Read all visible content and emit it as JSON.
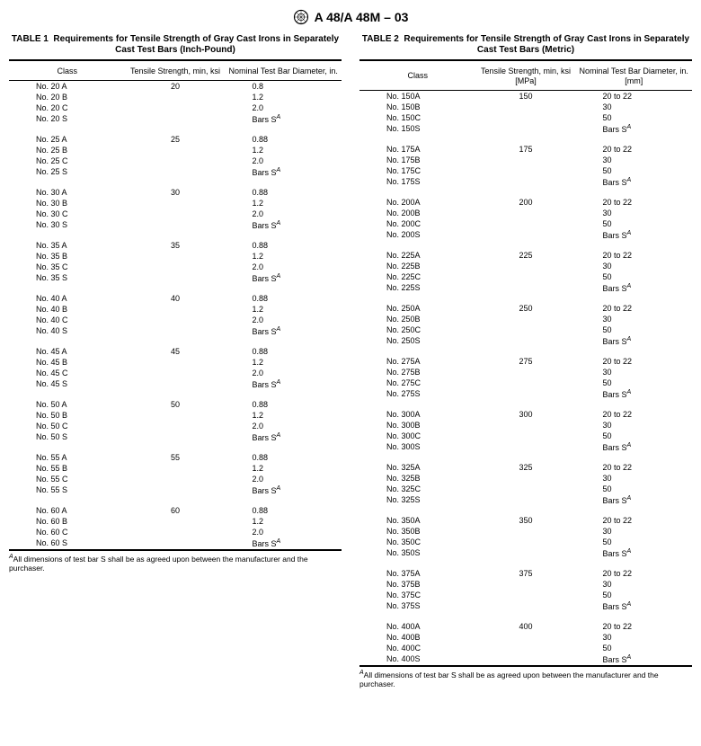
{
  "header": {
    "standard": "A 48/A 48M – 03"
  },
  "table1": {
    "caption_prefix": "TABLE 1",
    "caption": "Requirements for Tensile Strength of Gray Cast Irons in Separately Cast Test Bars (Inch-Pound)",
    "headers": {
      "class": "Class",
      "tensile": "Tensile Strength, min, ksi",
      "diameter": "Nominal Test Bar Diameter, in."
    },
    "groups": [
      {
        "ts": "20",
        "rows": [
          {
            "cls": "No. 20 A",
            "dia": "0.8"
          },
          {
            "cls": "No. 20 B",
            "dia": "1.2"
          },
          {
            "cls": "No. 20 C",
            "dia": "2.0"
          },
          {
            "cls": "No. 20 S",
            "dia_html": "Bars S<sup>A</sup>"
          }
        ]
      },
      {
        "ts": "25",
        "rows": [
          {
            "cls": "No. 25 A",
            "dia": "0.88"
          },
          {
            "cls": "No. 25 B",
            "dia": "1.2"
          },
          {
            "cls": "No. 25 C",
            "dia": "2.0"
          },
          {
            "cls": "No. 25 S",
            "dia_html": "Bars S<sup>A</sup>"
          }
        ]
      },
      {
        "ts": "30",
        "rows": [
          {
            "cls": "No. 30 A",
            "dia": "0.88"
          },
          {
            "cls": "No. 30 B",
            "dia": "1.2"
          },
          {
            "cls": "No. 30 C",
            "dia": "2.0"
          },
          {
            "cls": "No. 30 S",
            "dia_html": "Bars S<sup>A</sup>"
          }
        ]
      },
      {
        "ts": "35",
        "rows": [
          {
            "cls": "No. 35 A",
            "dia": "0.88"
          },
          {
            "cls": "No. 35 B",
            "dia": "1.2"
          },
          {
            "cls": "No. 35 C",
            "dia": "2.0"
          },
          {
            "cls": "No. 35 S",
            "dia_html": "Bars S<sup>A</sup>"
          }
        ]
      },
      {
        "ts": "40",
        "rows": [
          {
            "cls": "No. 40 A",
            "dia": "0.88"
          },
          {
            "cls": "No. 40 B",
            "dia": "1.2"
          },
          {
            "cls": "No. 40 C",
            "dia": "2.0"
          },
          {
            "cls": "No. 40 S",
            "dia_html": "Bars S<sup>A</sup>"
          }
        ]
      },
      {
        "ts": "45",
        "rows": [
          {
            "cls": "No. 45 A",
            "dia": "0.88"
          },
          {
            "cls": "No. 45 B",
            "dia": "1.2"
          },
          {
            "cls": "No. 45 C",
            "dia": "2.0"
          },
          {
            "cls": "No. 45 S",
            "dia_html": "Bars S<sup>A</sup>"
          }
        ]
      },
      {
        "ts": "50",
        "rows": [
          {
            "cls": "No. 50 A",
            "dia": "0.88"
          },
          {
            "cls": "No. 50 B",
            "dia": "1.2"
          },
          {
            "cls": "No. 50 C",
            "dia": "2.0"
          },
          {
            "cls": "No. 50 S",
            "dia_html": "Bars S<sup>A</sup>"
          }
        ]
      },
      {
        "ts": "55",
        "rows": [
          {
            "cls": "No. 55 A",
            "dia": "0.88"
          },
          {
            "cls": "No. 55 B",
            "dia": "1.2"
          },
          {
            "cls": "No. 55 C",
            "dia": "2.0"
          },
          {
            "cls": "No. 55 S",
            "dia_html": "Bars S<sup>A</sup>"
          }
        ]
      },
      {
        "ts": "60",
        "rows": [
          {
            "cls": "No. 60 A",
            "dia": "0.88"
          },
          {
            "cls": "No. 60 B",
            "dia": "1.2"
          },
          {
            "cls": "No. 60 C",
            "dia": "2.0"
          },
          {
            "cls": "No. 60 S",
            "dia_html": "Bars S<sup>A</sup>"
          }
        ]
      }
    ],
    "footnote_html": "<sup>A</sup>All dimensions of test bar S shall be as agreed upon between the manufacturer and the purchaser."
  },
  "table2": {
    "caption_prefix": "TABLE 2",
    "caption": "Requirements for Tensile Strength of Gray Cast Irons in Separately Cast Test Bars (Metric)",
    "headers": {
      "class": "Class",
      "tensile": "Tensile Strength, min, ksi [MPa]",
      "diameter": "Nominal Test Bar Diameter, in. [mm]"
    },
    "groups": [
      {
        "ts": "150",
        "rows": [
          {
            "cls": "No. 150A",
            "dia": "20 to 22"
          },
          {
            "cls": "No. 150B",
            "dia": "30"
          },
          {
            "cls": "No. 150C",
            "dia": "50"
          },
          {
            "cls": "No. 150S",
            "dia_html": "Bars S<sup>A</sup>"
          }
        ]
      },
      {
        "ts": "175",
        "rows": [
          {
            "cls": "No. 175A",
            "dia": "20 to 22"
          },
          {
            "cls": "No. 175B",
            "dia": "30"
          },
          {
            "cls": "No. 175C",
            "dia": "50"
          },
          {
            "cls": "No. 175S",
            "dia_html": "Bars S<sup>A</sup>"
          }
        ]
      },
      {
        "ts": "200",
        "rows": [
          {
            "cls": "No. 200A",
            "dia": "20 to 22"
          },
          {
            "cls": "No. 200B",
            "dia": "30"
          },
          {
            "cls": "No. 200C",
            "dia": "50"
          },
          {
            "cls": "No. 200S",
            "dia_html": "Bars S<sup>A</sup>"
          }
        ]
      },
      {
        "ts": "225",
        "rows": [
          {
            "cls": "No. 225A",
            "dia": "20 to 22"
          },
          {
            "cls": "No. 225B",
            "dia": "30"
          },
          {
            "cls": "No. 225C",
            "dia": "50"
          },
          {
            "cls": "No. 225S",
            "dia_html": "Bars S<sup>A</sup>"
          }
        ]
      },
      {
        "ts": "250",
        "rows": [
          {
            "cls": "No. 250A",
            "dia": "20 to 22"
          },
          {
            "cls": "No. 250B",
            "dia": "30"
          },
          {
            "cls": "No. 250C",
            "dia": "50"
          },
          {
            "cls": "No. 250S",
            "dia_html": "Bars S<sup>A</sup>"
          }
        ]
      },
      {
        "ts": "275",
        "rows": [
          {
            "cls": "No. 275A",
            "dia": "20 to 22"
          },
          {
            "cls": "No. 275B",
            "dia": "30"
          },
          {
            "cls": "No. 275C",
            "dia": "50"
          },
          {
            "cls": "No. 275S",
            "dia_html": "Bars S<sup>A</sup>"
          }
        ]
      },
      {
        "ts": "300",
        "rows": [
          {
            "cls": "No. 300A",
            "dia": "20 to 22"
          },
          {
            "cls": "No. 300B",
            "dia": "30"
          },
          {
            "cls": "No. 300C",
            "dia": "50"
          },
          {
            "cls": "No. 300S",
            "dia_html": "Bars S<sup>A</sup>"
          }
        ]
      },
      {
        "ts": "325",
        "rows": [
          {
            "cls": "No. 325A",
            "dia": "20 to 22"
          },
          {
            "cls": "No. 325B",
            "dia": "30"
          },
          {
            "cls": "No. 325C",
            "dia": "50"
          },
          {
            "cls": "No. 325S",
            "dia_html": "Bars S<sup>A</sup>"
          }
        ]
      },
      {
        "ts": "350",
        "rows": [
          {
            "cls": "No. 350A",
            "dia": "20 to 22"
          },
          {
            "cls": "No. 350B",
            "dia": "30"
          },
          {
            "cls": "No. 350C",
            "dia": "50"
          },
          {
            "cls": "No. 350S",
            "dia_html": "Bars S<sup>A</sup>"
          }
        ]
      },
      {
        "ts": "375",
        "rows": [
          {
            "cls": "No. 375A",
            "dia": "20 to 22"
          },
          {
            "cls": "No. 375B",
            "dia": "30"
          },
          {
            "cls": "No. 375C",
            "dia": "50"
          },
          {
            "cls": "No. 375S",
            "dia_html": "Bars S<sup>A</sup>"
          }
        ]
      },
      {
        "ts": "400",
        "rows": [
          {
            "cls": "No. 400A",
            "dia": "20 to 22"
          },
          {
            "cls": "No. 400B",
            "dia": "30"
          },
          {
            "cls": "No. 400C",
            "dia": "50"
          },
          {
            "cls": "No. 400S",
            "dia_html": "Bars S<sup>A</sup>"
          }
        ]
      }
    ],
    "footnote_html": "<sup>A</sup>All dimensions of test bar S shall be as agreed upon between the manufacturer and the purchaser."
  }
}
